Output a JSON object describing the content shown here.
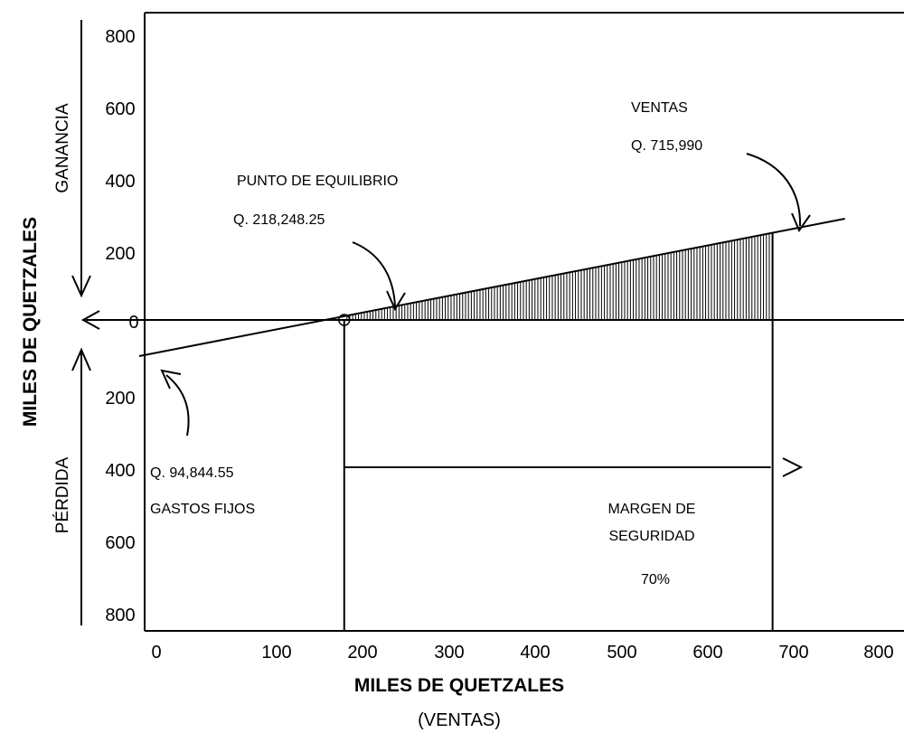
{
  "chart_data": {
    "type": "line",
    "title": "",
    "xlabel": "MILES DE QUETZALES",
    "xlabel_sub": "(VENTAS)",
    "ylabel": "MILES DE QUETZALES",
    "y_side_labels": {
      "top": "GANANCIA",
      "bottom": "PÉRDIDA"
    },
    "x_ticks": [
      "0",
      "100",
      "200",
      "300",
      "400",
      "500",
      "600",
      "700",
      "800"
    ],
    "y_ticks": [
      "800",
      "600",
      "400",
      "200",
      "0",
      "200",
      "400",
      "600",
      "800"
    ],
    "xlim": [
      0,
      800
    ],
    "ylim": [
      -800,
      800
    ],
    "series": [
      {
        "values": [
          [
            -20,
            -100
          ],
          [
            800,
            280
          ]
        ]
      }
    ],
    "annotations": {
      "break_even_title": "PUNTO DE EQUILIBRIO",
      "break_even_value": "Q. 218,248.25",
      "sales_title": "VENTAS",
      "sales_value": "Q. 715,990",
      "fixed_costs_value": "Q. 94,844.55",
      "fixed_costs_title": "GASTOS FIJOS",
      "margin_title_1": "MARGEN DE",
      "margin_title_2": "SEGURIDAD",
      "margin_value": "70%"
    },
    "break_even_x": 218.25,
    "sales_x": 715.99,
    "margin_percent": 70
  }
}
